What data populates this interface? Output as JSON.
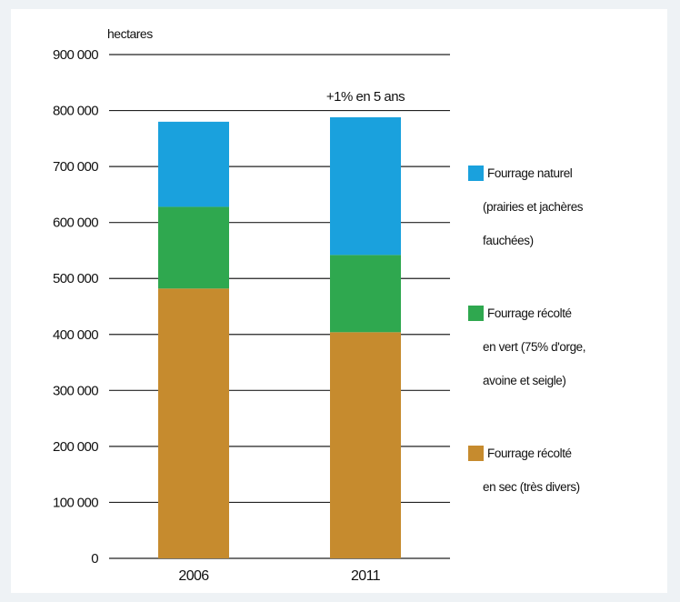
{
  "chart_data": {
    "type": "bar",
    "stacked": true,
    "unit_label": "hectares",
    "categories": [
      "2006",
      "2011"
    ],
    "series": [
      {
        "name": "Fourrage récolté en sec (très divers)",
        "color": "#c68b2e",
        "values": [
          482000,
          404000
        ]
      },
      {
        "name": "Fourrage récolté en vert (75% d'orge, avoine et seigle)",
        "color": "#2fa84f",
        "values": [
          146000,
          138000
        ]
      },
      {
        "name": "Fourrage naturel (prairies et jachères fauchées)",
        "color": "#1aa1dd",
        "values": [
          152000,
          246000
        ]
      }
    ],
    "ylim": [
      0,
      900000
    ],
    "yticks": [
      0,
      100000,
      200000,
      300000,
      400000,
      500000,
      600000,
      700000,
      800000,
      900000
    ],
    "ytick_labels": [
      "0",
      "100 000",
      "200 000",
      "300 000",
      "400 000",
      "500 000",
      "600 000",
      "700 000",
      "800 000",
      "900 000"
    ],
    "grid": true,
    "legend_position": "right",
    "annotations": [
      {
        "category": "2011",
        "text": "+1% en 5 ans"
      }
    ]
  },
  "legend": [
    {
      "lines": [
        "Fourrage naturel",
        "(prairies et jachères",
        "fauchées)"
      ]
    },
    {
      "lines": [
        "Fourrage récolté",
        "en vert (75% d'orge,",
        "avoine et seigle)"
      ]
    },
    {
      "lines": [
        "Fourrage récolté",
        "en sec (très divers)"
      ]
    }
  ]
}
